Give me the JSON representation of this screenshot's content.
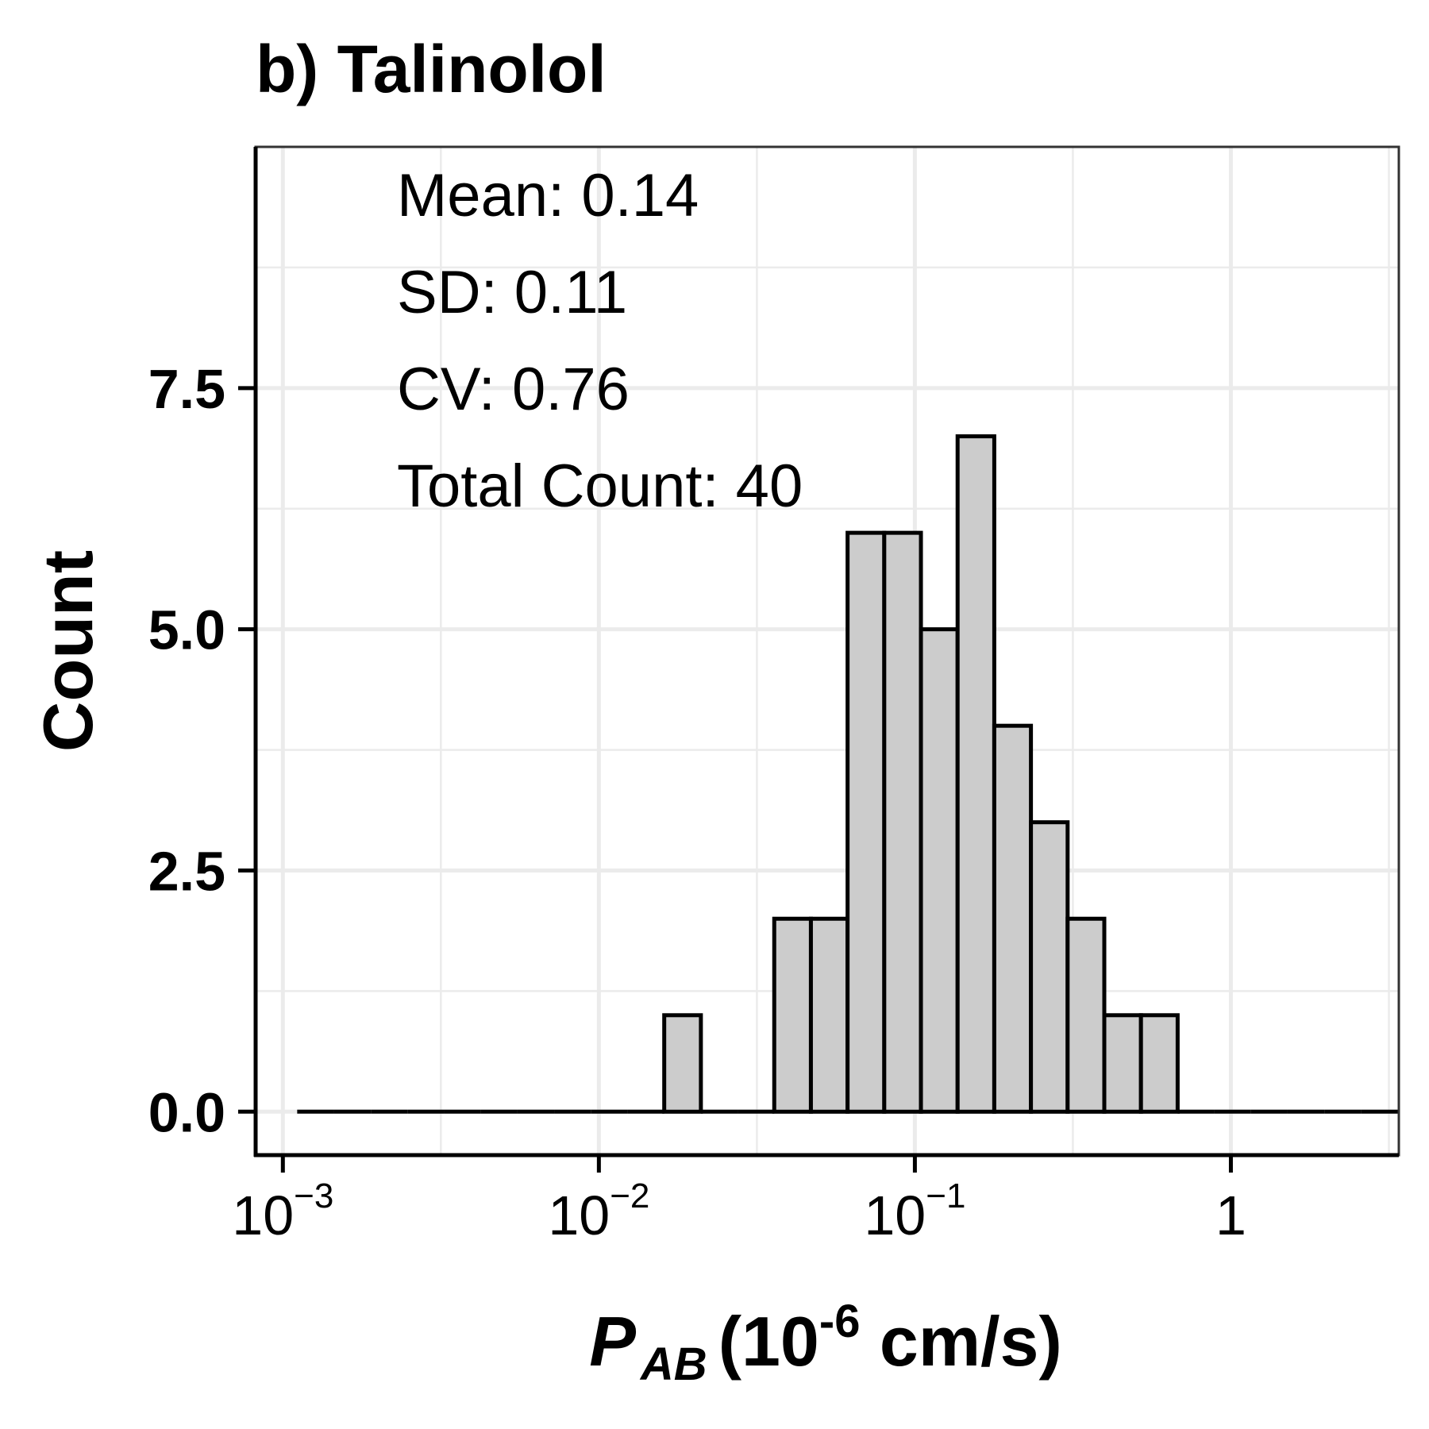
{
  "chart_data": {
    "type": "bar",
    "title": "b) Talinolol",
    "ylabel": "Count",
    "xlabel": {
      "symbol": "P",
      "subscript": "AB",
      "unit_pre": "(10",
      "unit_exp": "-6",
      "unit_post": " cm/s)"
    },
    "x_scale": "log10",
    "xlim": [
      0.00082,
      3.4
    ],
    "ylim": [
      -0.45,
      10.0
    ],
    "x_ticks": [
      {
        "value": 0.001,
        "base": "10",
        "exp": "−3"
      },
      {
        "value": 0.01,
        "base": "10",
        "exp": "−2"
      },
      {
        "value": 0.1,
        "base": "10",
        "exp": "−1"
      },
      {
        "value": 1,
        "base": "1",
        "exp": ""
      }
    ],
    "y_ticks": [
      {
        "value": 0.0,
        "label": "0.0"
      },
      {
        "value": 2.5,
        "label": "2.5"
      },
      {
        "value": 5.0,
        "label": "5.0"
      },
      {
        "value": 7.5,
        "label": "7.5"
      }
    ],
    "grid": true,
    "bins": [
      {
        "x0": 0.00111,
        "x1": 0.00145,
        "count": 0
      },
      {
        "x0": 0.00145,
        "x1": 0.0019,
        "count": 0
      },
      {
        "x0": 0.0019,
        "x1": 0.00248,
        "count": 0
      },
      {
        "x0": 0.00248,
        "x1": 0.00324,
        "count": 0
      },
      {
        "x0": 0.00324,
        "x1": 0.00423,
        "count": 0
      },
      {
        "x0": 0.00423,
        "x1": 0.00553,
        "count": 0
      },
      {
        "x0": 0.00553,
        "x1": 0.00722,
        "count": 0
      },
      {
        "x0": 0.00722,
        "x1": 0.00943,
        "count": 0
      },
      {
        "x0": 0.00943,
        "x1": 0.01232,
        "count": 0
      },
      {
        "x0": 0.01232,
        "x1": 0.0161,
        "count": 0
      },
      {
        "x0": 0.0161,
        "x1": 0.02103,
        "count": 1
      },
      {
        "x0": 0.02103,
        "x1": 0.02747,
        "count": 0
      },
      {
        "x0": 0.02747,
        "x1": 0.03589,
        "count": 0
      },
      {
        "x0": 0.03589,
        "x1": 0.04688,
        "count": 2
      },
      {
        "x0": 0.04688,
        "x1": 0.06124,
        "count": 2
      },
      {
        "x0": 0.06124,
        "x1": 0.08,
        "count": 6
      },
      {
        "x0": 0.08,
        "x1": 0.10451,
        "count": 6
      },
      {
        "x0": 0.10451,
        "x1": 0.13652,
        "count": 5
      },
      {
        "x0": 0.13652,
        "x1": 0.17834,
        "count": 7
      },
      {
        "x0": 0.17834,
        "x1": 0.23297,
        "count": 4
      },
      {
        "x0": 0.23297,
        "x1": 0.30434,
        "count": 3
      },
      {
        "x0": 0.30434,
        "x1": 0.39757,
        "count": 2
      },
      {
        "x0": 0.39757,
        "x1": 0.51935,
        "count": 1
      },
      {
        "x0": 0.51935,
        "x1": 0.67844,
        "count": 1
      },
      {
        "x0": 0.67844,
        "x1": 0.88626,
        "count": 0
      },
      {
        "x0": 0.88626,
        "x1": 1.15774,
        "count": 0
      },
      {
        "x0": 1.15774,
        "x1": 1.51238,
        "count": 0
      },
      {
        "x0": 1.51238,
        "x1": 1.97565,
        "count": 0
      },
      {
        "x0": 1.97565,
        "x1": 2.58082,
        "count": 0
      },
      {
        "x0": 2.58082,
        "x1": 3.37136,
        "count": 0
      }
    ],
    "bar_fill": "#cccccc",
    "bar_stroke": "#000000",
    "grid_color": "#ebebeb",
    "annotations": [
      "Mean: 0.14",
      "SD: 0.11",
      "CV: 0.76",
      "Total Count: 40"
    ]
  }
}
